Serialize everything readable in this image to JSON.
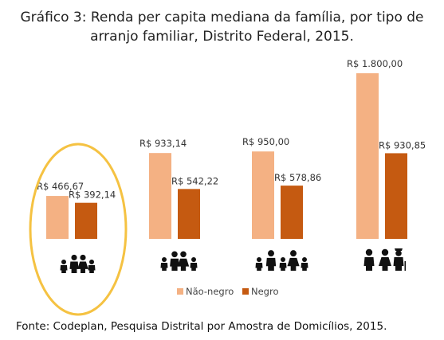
{
  "title_line1": "Gráfico 3: Renda per capita mediana da família, por tipo de",
  "title_line2": "arranjo familiar, Distrito Federal, 2015.",
  "source": "Fonte: Codeplan, Pesquisa Distrital por Amostra de Domicílios, 2015.",
  "colors": {
    "nao_negro": "#F4B183",
    "negro": "#C55A11",
    "highlight": "#F5C242",
    "icon": "#111111"
  },
  "chart_data": {
    "type": "bar",
    "categories": [
      "",
      "",
      "",
      ""
    ],
    "category_icons": [
      "family-parents-two-children-icon",
      "family-couple-two-children-icon",
      "family-couple-three-children-icon",
      "family-three-adults-icon"
    ],
    "series": [
      {
        "name": "Não-negro",
        "values": [
          466.67,
          933.14,
          950.0,
          1800.0
        ],
        "labels": [
          "R$ 466,67",
          "R$ 933,14",
          "R$ 950,00",
          "R$ 1.800,00"
        ]
      },
      {
        "name": "Negro",
        "values": [
          392.14,
          542.22,
          578.86,
          930.85
        ],
        "labels": [
          "R$ 392,14",
          "R$ 542,22",
          "R$ 578,86",
          "R$ 930,85"
        ]
      }
    ],
    "ylim": [
      0,
      1800
    ],
    "legend": "bottom-center",
    "grid": false,
    "highlighted_category": 0
  }
}
